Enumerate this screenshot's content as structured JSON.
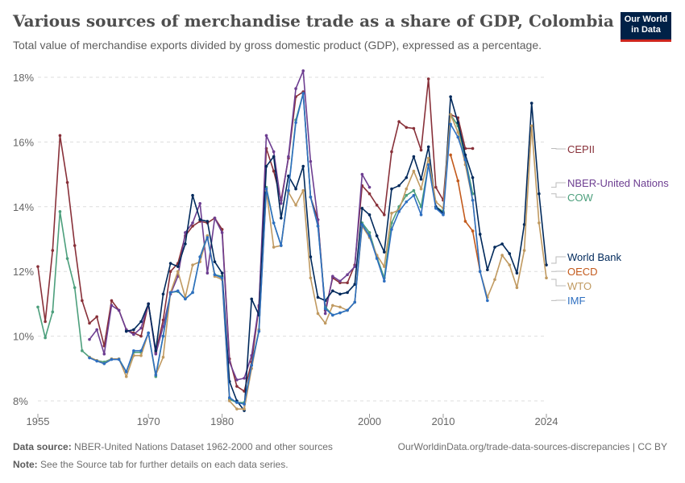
{
  "header": {
    "title": "Various sources of merchandise trade as a share of GDP, Colombia",
    "subtitle": "Total value of merchandise exports divided by gross domestic product (GDP), expressed as a percentage.",
    "logo_line1": "Our World",
    "logo_line2": "in Data"
  },
  "footer": {
    "source_label": "Data source:",
    "source_text": "NBER-United Nations Dataset 1962-2000 and other sources",
    "note_label": "Note:",
    "note_text": "See the Source tab for further details on each data series.",
    "url": "OurWorldinData.org/trade-data-sources-discrepancies | CC BY"
  },
  "chart_data": {
    "type": "line",
    "title": "Various sources of merchandise trade as a share of GDP, Colombia",
    "xlim": [
      1955,
      2024
    ],
    "ylim": [
      7.5,
      18.3
    ],
    "x_ticks": [
      "1955",
      "1970",
      "1980",
      "2000",
      "2010",
      "2024"
    ],
    "y_ticks": [
      "8%",
      "10%",
      "12%",
      "14%",
      "16%",
      "18%"
    ],
    "grid": "horizontal dashed",
    "legend": "right, line-end labels",
    "series": [
      {
        "name": "CEPII",
        "color": "#883039",
        "start": 1955,
        "values": [
          12.15,
          10.45,
          12.65,
          16.2,
          14.75,
          12.8,
          11.1,
          10.4,
          10.6,
          9.7,
          11.1,
          10.8,
          10.2,
          10.1,
          10.0,
          11.0,
          9.5,
          10.5,
          12.0,
          12.25,
          13.1,
          13.4,
          13.55,
          13.5,
          13.65,
          13.3,
          9.3,
          8.45,
          8.3,
          9.2,
          10.9,
          15.8,
          15.1,
          14.2,
          15.5,
          17.4,
          17.55,
          14.3,
          13.6,
          10.8,
          11.8,
          11.65,
          11.65,
          12.2,
          14.65,
          14.4,
          14.05,
          13.75,
          15.7,
          16.63,
          16.45,
          16.42,
          15.75,
          17.95,
          14.6,
          14.2,
          16.85,
          16.75,
          15.8,
          15.8
        ]
      },
      {
        "name": "NBER-United Nations",
        "color": "#6d3e91",
        "start": 1962,
        "values": [
          9.9,
          10.2,
          9.45,
          10.95,
          10.8,
          10.2,
          10.05,
          10.25,
          11.0,
          9.45,
          10.3,
          11.3,
          11.85,
          13.2,
          13.5,
          14.1,
          11.95,
          13.65,
          13.2,
          9.2,
          8.65,
          8.7,
          9.4,
          10.95,
          16.2,
          15.7,
          14.1,
          15.55,
          17.65,
          18.2,
          15.4,
          13.6,
          10.7,
          11.85,
          11.7,
          11.9,
          12.15,
          15.0,
          14.6
        ]
      },
      {
        "name": "COW",
        "color": "#4c9f7c",
        "start": 1955,
        "values": [
          10.9,
          9.95,
          10.75,
          13.85,
          12.4,
          11.5,
          9.55,
          9.35,
          9.25,
          9.2,
          9.3,
          9.3,
          8.9,
          9.5,
          9.5,
          10.1,
          8.75,
          10.0,
          11.35,
          11.38,
          11.15,
          11.35,
          12.45,
          13.1,
          11.9,
          11.85,
          8.05,
          7.95,
          7.95,
          9.1,
          10.2,
          14.6,
          13.5,
          12.8,
          14.5,
          16.68,
          17.5,
          14.3,
          13.4,
          10.9,
          10.65,
          10.72,
          10.8,
          11.05,
          13.5,
          13.2,
          12.45,
          11.8,
          13.5,
          14.0,
          14.35,
          14.5,
          14.0,
          15.3,
          14.0,
          13.85,
          16.85,
          16.5,
          15.5,
          14.4
        ]
      },
      {
        "name": "World Bank",
        "color": "#00295b",
        "start": 1967,
        "values": [
          10.15,
          10.2,
          10.45,
          11.0,
          9.55,
          11.3,
          12.25,
          12.15,
          12.85,
          14.35,
          13.6,
          13.55,
          12.3,
          11.95,
          8.6,
          8.0,
          7.7,
          11.15,
          10.65,
          15.25,
          15.55,
          13.65,
          14.95,
          14.55,
          15.25,
          12.45,
          11.2,
          11.1,
          11.4,
          11.3,
          11.35,
          11.6,
          13.95,
          13.75,
          13.1,
          12.6,
          14.55,
          14.65,
          14.9,
          15.55,
          14.85,
          15.85,
          14.0,
          13.8,
          17.4,
          16.6,
          15.6,
          14.9,
          13.15,
          12.05,
          12.75,
          12.85,
          12.55,
          11.95,
          13.45,
          17.2,
          14.4,
          12.2
        ]
      },
      {
        "name": "OECD",
        "color": "#c35a1c",
        "start": 2011,
        "values": [
          15.6,
          14.8,
          13.55,
          13.25,
          12.0
        ]
      },
      {
        "name": "WTO",
        "color": "#c09a61",
        "start": 1962,
        "values": [
          9.35,
          9.25,
          9.15,
          9.3,
          9.3,
          8.75,
          9.4,
          9.4,
          10.1,
          8.8,
          9.35,
          11.35,
          12.0,
          11.2,
          12.2,
          12.3,
          13.1,
          11.85,
          11.75,
          8.0,
          7.75,
          7.75,
          9.0,
          10.2,
          14.5,
          12.75,
          12.8,
          14.45,
          14.05,
          14.5,
          11.8,
          10.7,
          10.4,
          10.95,
          10.9,
          10.8,
          11.05,
          13.4,
          13.05,
          12.5,
          12.15,
          13.8,
          13.9,
          14.55,
          15.1,
          14.55,
          15.5,
          14.15,
          13.95,
          16.85,
          16.3,
          15.3,
          14.2,
          12.0,
          11.2,
          11.75,
          12.5,
          12.2,
          11.5,
          12.65,
          16.5,
          13.5,
          11.8
        ]
      },
      {
        "name": "IMF",
        "color": "#2e6fc0",
        "start": 1962,
        "values": [
          9.33,
          9.23,
          9.15,
          9.28,
          9.28,
          8.9,
          9.55,
          9.55,
          10.1,
          8.8,
          10.0,
          11.35,
          11.4,
          11.15,
          11.35,
          12.45,
          13.05,
          11.9,
          11.8,
          8.1,
          7.95,
          7.9,
          9.1,
          10.15,
          14.55,
          13.5,
          12.8,
          14.5,
          16.6,
          17.5,
          14.3,
          13.4,
          10.85,
          10.65,
          10.72,
          10.8,
          11.05,
          13.45,
          13.1,
          12.4,
          11.7,
          13.3,
          13.85,
          14.15,
          14.35,
          13.75,
          15.3,
          13.95,
          13.75,
          16.55,
          16.15,
          15.45,
          14.2,
          12.0,
          11.1
        ]
      }
    ]
  }
}
